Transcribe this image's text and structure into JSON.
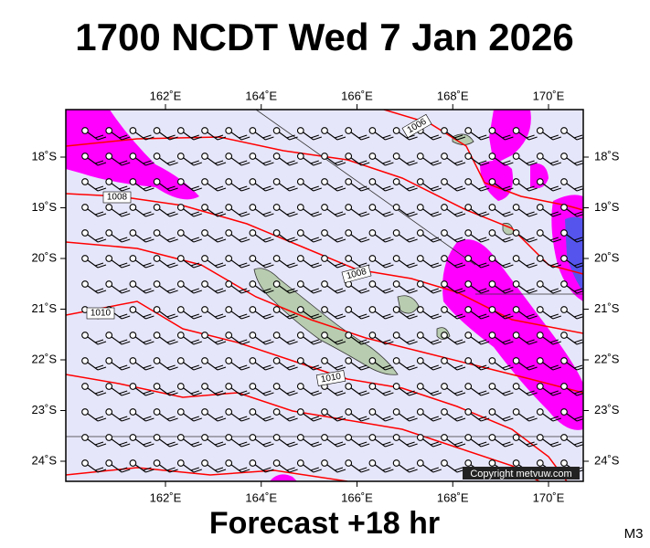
{
  "header": {
    "title": "1700 NCDT Wed 7 Jan 2026"
  },
  "footer": {
    "forecast": "Forecast +18 hr",
    "model": "M3"
  },
  "map": {
    "lon_labels": [
      "162˚E",
      "164˚E",
      "166˚E",
      "168˚E",
      "170˚E"
    ],
    "lat_labels": [
      "18˚S",
      "19˚S",
      "20˚S",
      "21˚S",
      "22˚S",
      "23˚S",
      "24˚S"
    ],
    "isobar_labels": [
      "1006",
      "1008",
      "1008",
      "1010",
      "1010"
    ],
    "copyright": "Copyright metvuw.com"
  }
}
